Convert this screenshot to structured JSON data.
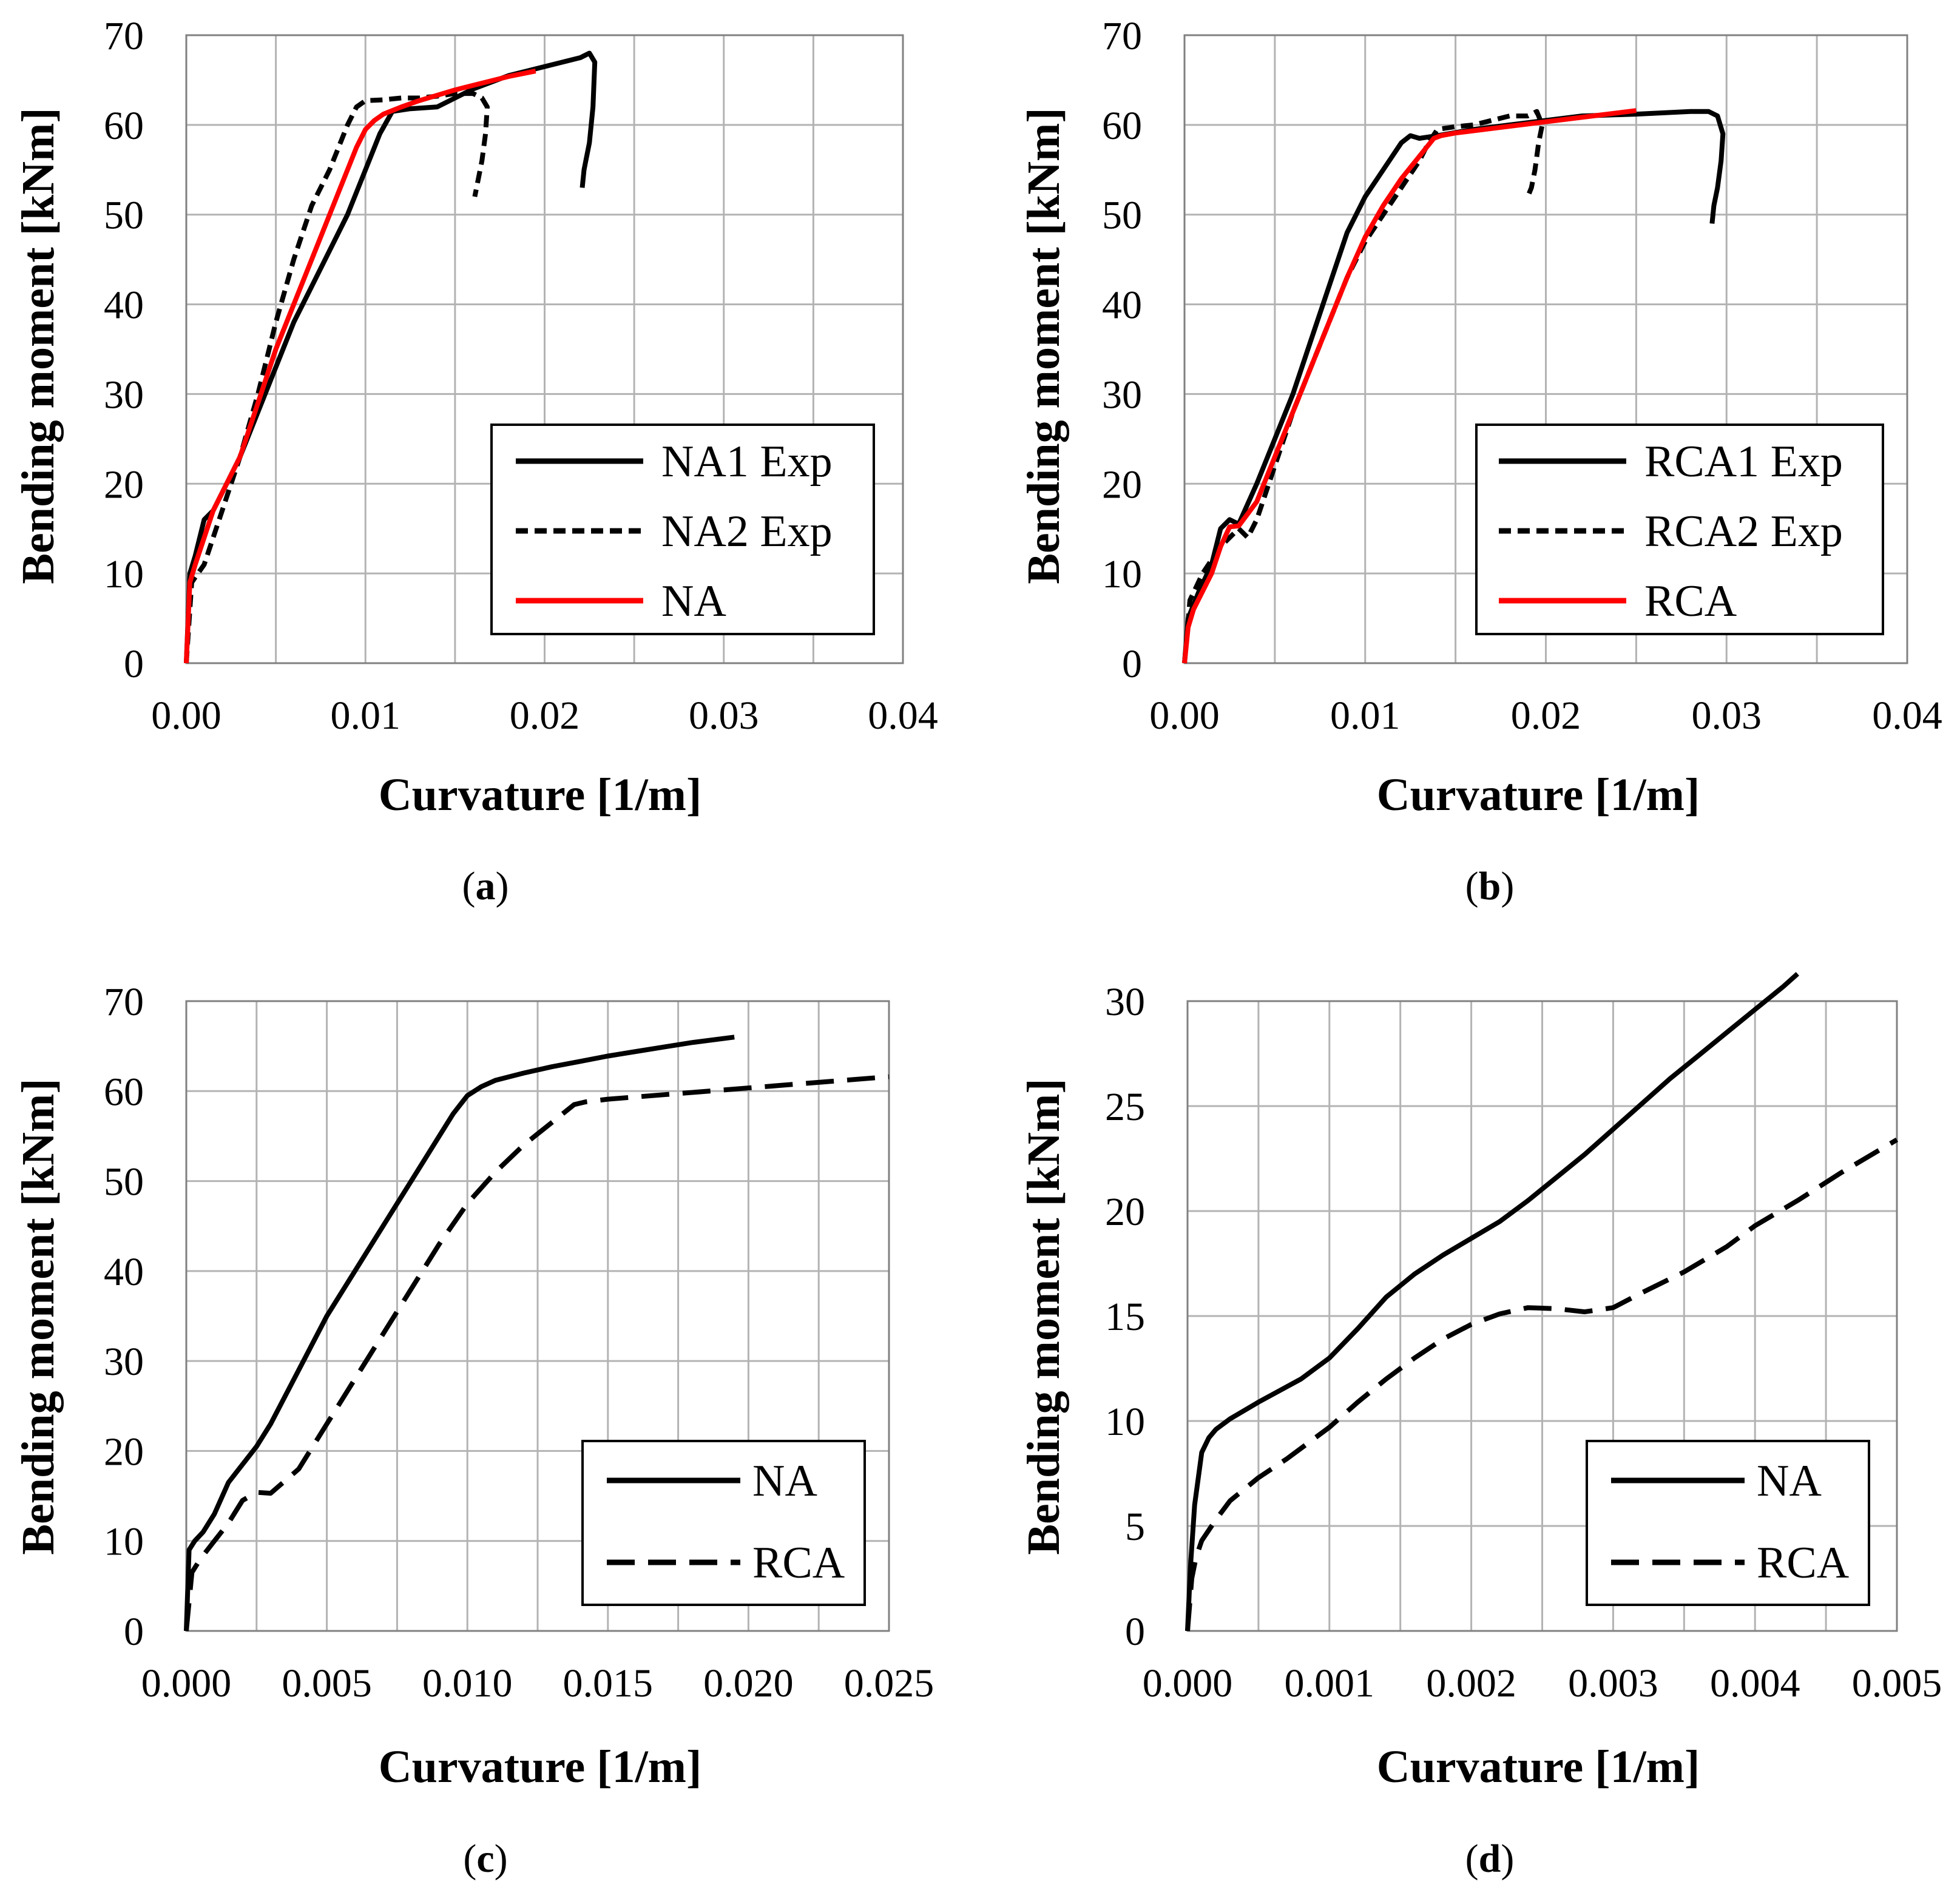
{
  "chart_data": [
    {
      "type": "line",
      "panel": "a",
      "caption": {
        "open": "(",
        "letter": "a",
        "close": ")"
      },
      "xlabel": "Curvature [1/m]",
      "ylabel": "Bending moment [kNm]",
      "xlim": [
        0,
        0.04
      ],
      "ylim": [
        0,
        70
      ],
      "xticks": [
        "0.00",
        "0.01",
        "0.02",
        "0.03",
        "0.04"
      ],
      "yticks": [
        "0",
        "10",
        "20",
        "30",
        "40",
        "50",
        "60",
        "70"
      ],
      "xtick_values": [
        0,
        0.01,
        0.02,
        0.03,
        0.04
      ],
      "ytick_values": [
        0,
        10,
        20,
        30,
        40,
        50,
        60,
        70
      ],
      "xgrid_values": [
        0,
        0.005,
        0.01,
        0.015,
        0.02,
        0.025,
        0.03,
        0.035,
        0.04
      ],
      "ygrid_values": [
        0,
        10,
        20,
        30,
        40,
        50,
        60,
        70
      ],
      "legend": {
        "position": "bottom-right"
      },
      "series": [
        {
          "name": "NA1 Exp",
          "style": "solid",
          "color": "#000000",
          "x": [
            0,
            0.0002,
            0.0005,
            0.001,
            0.0015,
            0.002,
            0.003,
            0.004,
            0.005,
            0.006,
            0.007,
            0.008,
            0.009,
            0.01,
            0.0108,
            0.0115,
            0.0125,
            0.014,
            0.016,
            0.018,
            0.02,
            0.021,
            0.022,
            0.0225,
            0.0228,
            0.0227,
            0.0225,
            0.0223,
            0.0222,
            0.0221
          ],
          "y": [
            0,
            10,
            12,
            16,
            17,
            19,
            23,
            28,
            33,
            38,
            42,
            46,
            50,
            55,
            59,
            61.5,
            61.8,
            62,
            64,
            65.5,
            66.5,
            67,
            67.5,
            68,
            67,
            62,
            58,
            56,
            55,
            53
          ]
        },
        {
          "name": "NA2 Exp",
          "style": "dashed",
          "color": "#000000",
          "x": [
            0,
            0.0003,
            0.001,
            0.002,
            0.003,
            0.004,
            0.005,
            0.006,
            0.007,
            0.008,
            0.009,
            0.0095,
            0.01,
            0.011,
            0.012,
            0.013,
            0.014,
            0.015,
            0.016,
            0.0165,
            0.0168,
            0.0167,
            0.0165,
            0.0163,
            0.0161
          ],
          "y": [
            0,
            9,
            11,
            17,
            23,
            30,
            38,
            45,
            51,
            55,
            60,
            62,
            62.7,
            62.8,
            63,
            63,
            63.2,
            63.5,
            63.5,
            63,
            62,
            59,
            56,
            54,
            52
          ]
        },
        {
          "name": "NA",
          "style": "solid",
          "color": "#ff0000",
          "x": [
            0,
            0.0002,
            0.0005,
            0.001,
            0.0015,
            0.002,
            0.003,
            0.004,
            0.005,
            0.006,
            0.007,
            0.008,
            0.009,
            0.0095,
            0.01,
            0.0105,
            0.011,
            0.012,
            0.013,
            0.014,
            0.015,
            0.016,
            0.017,
            0.018,
            0.0195
          ],
          "y": [
            0,
            9,
            11,
            14,
            17,
            19,
            23,
            29,
            35,
            40,
            45,
            50,
            55,
            57.5,
            59.5,
            60.5,
            61.2,
            62,
            62.7,
            63.3,
            63.9,
            64.4,
            64.9,
            65.4,
            66
          ]
        }
      ]
    },
    {
      "type": "line",
      "panel": "b",
      "caption": {
        "open": "(",
        "letter": "b",
        "close": ")"
      },
      "xlabel": "Curvature [1/m]",
      "ylabel": "Bending moment [kNm]",
      "xlim": [
        0,
        0.04
      ],
      "ylim": [
        0,
        70
      ],
      "xticks": [
        "0.00",
        "0.01",
        "0.02",
        "0.03",
        "0.04"
      ],
      "yticks": [
        "0",
        "10",
        "20",
        "30",
        "40",
        "50",
        "60",
        "70"
      ],
      "xtick_values": [
        0,
        0.01,
        0.02,
        0.03,
        0.04
      ],
      "ytick_values": [
        0,
        10,
        20,
        30,
        40,
        50,
        60,
        70
      ],
      "xgrid_values": [
        0,
        0.005,
        0.01,
        0.015,
        0.02,
        0.025,
        0.03,
        0.035,
        0.04
      ],
      "ygrid_values": [
        0,
        10,
        20,
        30,
        40,
        50,
        60,
        70
      ],
      "legend": {
        "position": "bottom-right"
      },
      "series": [
        {
          "name": "RCA1 Exp",
          "style": "solid",
          "color": "#000000",
          "x": [
            0,
            0.0002,
            0.0008,
            0.0015,
            0.002,
            0.0025,
            0.003,
            0.004,
            0.005,
            0.006,
            0.007,
            0.008,
            0.009,
            0.01,
            0.011,
            0.012,
            0.0125,
            0.013,
            0.014,
            0.016,
            0.018,
            0.02,
            0.022,
            0.025,
            0.028,
            0.029,
            0.0295,
            0.0298,
            0.0297,
            0.0295,
            0.0293,
            0.0292
          ],
          "y": [
            0,
            5,
            8,
            11,
            15,
            16,
            15.5,
            20,
            25,
            30,
            36,
            42,
            48,
            52,
            55,
            58,
            58.8,
            58.5,
            58.8,
            59.5,
            60,
            60.5,
            61,
            61.2,
            61.5,
            61.5,
            61,
            59,
            56,
            53,
            51,
            49
          ]
        },
        {
          "name": "RCA2 Exp",
          "style": "dashed",
          "color": "#000000",
          "x": [
            0,
            0.0003,
            0.001,
            0.002,
            0.003,
            0.0035,
            0.004,
            0.005,
            0.006,
            0.007,
            0.008,
            0.009,
            0.01,
            0.011,
            0.012,
            0.013,
            0.0135,
            0.014,
            0.015,
            0.016,
            0.017,
            0.018,
            0.019,
            0.0195,
            0.0198,
            0.0196,
            0.0194,
            0.0192,
            0.019
          ],
          "y": [
            0,
            7,
            10,
            13,
            15,
            14,
            16,
            22,
            28,
            33,
            38,
            43,
            47,
            50,
            53,
            56,
            58,
            59.5,
            59.8,
            60,
            60.5,
            61,
            61,
            61.5,
            60,
            58,
            55,
            53,
            52
          ]
        },
        {
          "name": "RCA",
          "style": "solid",
          "color": "#ff0000",
          "x": [
            0,
            0.0002,
            0.0005,
            0.001,
            0.0015,
            0.002,
            0.0025,
            0.003,
            0.004,
            0.005,
            0.006,
            0.007,
            0.008,
            0.009,
            0.01,
            0.011,
            0.012,
            0.013,
            0.0138,
            0.0142,
            0.015,
            0.017,
            0.019,
            0.021,
            0.023,
            0.025
          ],
          "y": [
            0,
            4,
            6,
            8,
            10,
            13,
            15.2,
            15.3,
            18,
            23,
            28,
            33,
            38,
            43,
            47.5,
            51,
            54,
            56.5,
            58.5,
            58.8,
            59.1,
            59.6,
            60.1,
            60.6,
            61.1,
            61.6
          ]
        }
      ]
    },
    {
      "type": "line",
      "panel": "c",
      "caption": {
        "open": "(",
        "letter": "c",
        "close": ")"
      },
      "xlabel": "Curvature [1/m]",
      "ylabel": "Bending moment [kNm]",
      "xlim": [
        0,
        0.025
      ],
      "ylim": [
        0,
        70
      ],
      "xticks": [
        "0.000",
        "0.005",
        "0.010",
        "0.015",
        "0.020",
        "0.025"
      ],
      "yticks": [
        "0",
        "10",
        "20",
        "30",
        "40",
        "50",
        "60",
        "70"
      ],
      "xtick_values": [
        0,
        0.005,
        0.01,
        0.015,
        0.02,
        0.025
      ],
      "ytick_values": [
        0,
        10,
        20,
        30,
        40,
        50,
        60,
        70
      ],
      "xgrid_values": [
        0,
        0.0025,
        0.005,
        0.0075,
        0.01,
        0.0125,
        0.015,
        0.0175,
        0.02,
        0.0225,
        0.025
      ],
      "ygrid_values": [
        0,
        10,
        20,
        30,
        40,
        50,
        60,
        70
      ],
      "legend": {
        "position": "bottom-right"
      },
      "series": [
        {
          "name": "NA",
          "style": "solid",
          "color": "#000000",
          "x": [
            0,
            0.0001,
            0.0003,
            0.0006,
            0.001,
            0.0015,
            0.002,
            0.0025,
            0.003,
            0.004,
            0.005,
            0.006,
            0.007,
            0.008,
            0.009,
            0.0095,
            0.01,
            0.0105,
            0.011,
            0.012,
            0.013,
            0.014,
            0.015,
            0.016,
            0.017,
            0.018,
            0.0195
          ],
          "y": [
            0,
            9,
            10,
            11,
            13,
            16.5,
            18.5,
            20.5,
            23,
            29,
            35,
            40,
            45,
            50,
            55,
            57.5,
            59.5,
            60.5,
            61.2,
            62,
            62.7,
            63.3,
            63.9,
            64.4,
            64.9,
            65.4,
            66
          ]
        },
        {
          "name": "RCA",
          "style": "longdash",
          "color": "#000000",
          "x": [
            0,
            0.0002,
            0.0005,
            0.001,
            0.0015,
            0.002,
            0.0025,
            0.003,
            0.004,
            0.005,
            0.006,
            0.007,
            0.008,
            0.009,
            0.01,
            0.011,
            0.012,
            0.013,
            0.0138,
            0.0142,
            0.015,
            0.017,
            0.019,
            0.021,
            0.023,
            0.025
          ],
          "y": [
            0,
            6.5,
            8,
            10,
            12,
            14.5,
            15.4,
            15.3,
            18,
            23,
            28,
            33,
            38,
            43,
            47.5,
            51,
            54,
            56.5,
            58.5,
            58.8,
            59.1,
            59.6,
            60.1,
            60.6,
            61.1,
            61.6
          ]
        }
      ]
    },
    {
      "type": "line",
      "panel": "d",
      "caption": {
        "open": "(",
        "letter": "d",
        "close": ")"
      },
      "xlabel": "Curvature [1/m]",
      "ylabel": "Bending moment [kNm]",
      "xlim": [
        0,
        0.005
      ],
      "ylim": [
        0,
        30
      ],
      "xticks": [
        "0.000",
        "0.001",
        "0.002",
        "0.003",
        "0.004",
        "0.005"
      ],
      "yticks": [
        "0",
        "5",
        "10",
        "15",
        "20",
        "25",
        "30"
      ],
      "xtick_values": [
        0,
        0.001,
        0.002,
        0.003,
        0.004,
        0.005
      ],
      "ytick_values": [
        0,
        5,
        10,
        15,
        20,
        25,
        30
      ],
      "xgrid_values": [
        0,
        0.0005,
        0.001,
        0.0015,
        0.002,
        0.0025,
        0.003,
        0.0035,
        0.004,
        0.0045,
        0.005
      ],
      "ygrid_values": [
        0,
        5,
        10,
        15,
        20,
        25,
        30
      ],
      "legend": {
        "position": "bottom-right"
      },
      "series": [
        {
          "name": "NA",
          "style": "solid",
          "color": "#000000",
          "x": [
            0,
            2e-05,
            5e-05,
            0.0001,
            0.00015,
            0.0002,
            0.0003,
            0.0005,
            0.0008,
            0.001,
            0.0012,
            0.0014,
            0.0016,
            0.0018,
            0.002,
            0.0022,
            0.0024,
            0.0026,
            0.0028,
            0.003,
            0.0032,
            0.0034,
            0.0036,
            0.0038,
            0.004,
            0.0042,
            0.0043
          ],
          "y": [
            0,
            3,
            6,
            8.5,
            9.2,
            9.6,
            10.1,
            10.9,
            12,
            13,
            14.4,
            15.9,
            17,
            17.9,
            18.7,
            19.5,
            20.5,
            21.6,
            22.7,
            23.9,
            25.1,
            26.3,
            27.4,
            28.5,
            29.6,
            30.7,
            31.3
          ]
        },
        {
          "name": "RCA",
          "style": "longdash",
          "color": "#000000",
          "x": [
            0,
            3e-05,
            6e-05,
            0.0001,
            0.0002,
            0.0003,
            0.0005,
            0.0007,
            0.001,
            0.0012,
            0.0014,
            0.0016,
            0.0018,
            0.002,
            0.0022,
            0.0024,
            0.0026,
            0.0028,
            0.003,
            0.0032,
            0.0035,
            0.0038,
            0.004,
            0.0043,
            0.0046,
            0.005
          ],
          "y": [
            0,
            2.5,
            3.5,
            4.3,
            5.3,
            6.2,
            7.3,
            8.2,
            9.7,
            10.9,
            12,
            13,
            13.9,
            14.6,
            15.1,
            15.4,
            15.35,
            15.2,
            15.4,
            16.1,
            17.1,
            18.3,
            19.3,
            20.5,
            21.8,
            23.4
          ]
        }
      ]
    }
  ]
}
